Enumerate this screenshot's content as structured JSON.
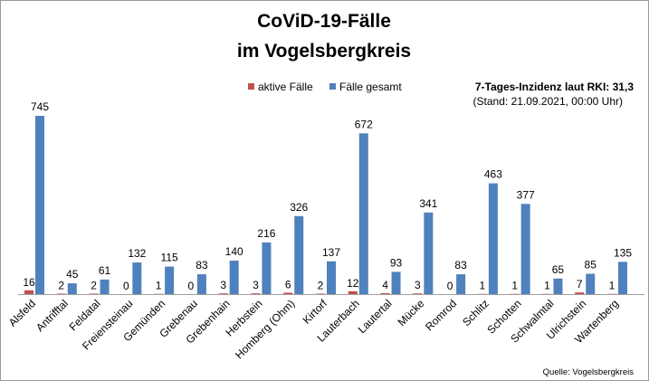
{
  "chart_data": {
    "type": "bar",
    "title": [
      "CoViD-19-Fälle",
      "im Vogelsbergkreis"
    ],
    "info": {
      "incidence": "7-Tages-Inzidenz laut RKI: 31,3",
      "stand": "(Stand: 21.09.2021, 00:00 Uhr)"
    },
    "source": "Quelle: Vogelsbergkreis",
    "legend_position": "top-center",
    "grid": false,
    "categories": [
      "Alsfeld",
      "Antrifftal",
      "Feldatal",
      "Freiensteinau",
      "Gemünden",
      "Grebenau",
      "Grebenhain",
      "Herbstein",
      "Homberg (Ohm)",
      "Kirtorf",
      "Lauterbach",
      "Lautertal",
      "Mücke",
      "Romrod",
      "Schlitz",
      "Schotten",
      "Schwalmtal",
      "Ulrichstein",
      "Wartenberg"
    ],
    "series": [
      {
        "name": "aktive Fälle",
        "color": "#c0504d",
        "values": [
          16,
          2,
          2,
          0,
          1,
          0,
          3,
          3,
          6,
          2,
          12,
          4,
          3,
          0,
          1,
          1,
          1,
          7,
          1
        ]
      },
      {
        "name": "Fälle gesamt",
        "color": "#4f81bd",
        "values": [
          745,
          45,
          61,
          132,
          115,
          83,
          140,
          216,
          326,
          137,
          672,
          93,
          341,
          83,
          463,
          377,
          65,
          85,
          135
        ]
      }
    ],
    "ylim": [
      0,
      800
    ]
  }
}
